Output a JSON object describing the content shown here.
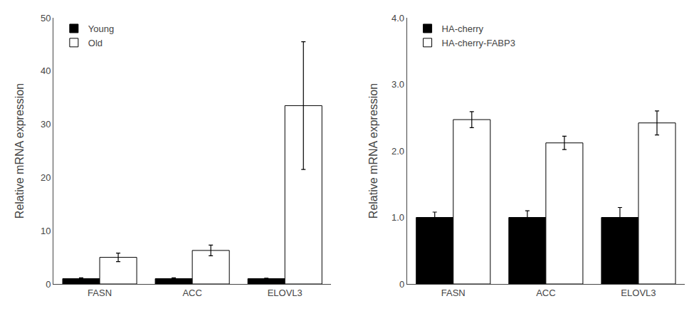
{
  "chart_data": [
    {
      "type": "bar",
      "categories": [
        "FASN",
        "ACC",
        "ELOVL3"
      ],
      "series": [
        {
          "name": "Young",
          "color": "#000000",
          "values": [
            1.0,
            1.0,
            1.0
          ],
          "errors": [
            0.15,
            0.15,
            0.1
          ]
        },
        {
          "name": "Old",
          "color": "#ffffff",
          "values": [
            5.0,
            6.3,
            33.5
          ],
          "errors": [
            0.8,
            1.0,
            12.0
          ]
        }
      ],
      "ylabel": "Relative mRNA expression",
      "ylim": [
        0,
        50
      ],
      "yticks": [
        0,
        10,
        20,
        30,
        40,
        50
      ],
      "legend": "upper left",
      "grid": false
    },
    {
      "type": "bar",
      "categories": [
        "FASN",
        "ACC",
        "ELOVL3"
      ],
      "series": [
        {
          "name": "HA-cherry",
          "color": "#000000",
          "values": [
            1.0,
            1.0,
            1.0
          ],
          "errors": [
            0.08,
            0.1,
            0.15
          ]
        },
        {
          "name": "HA-cherry-FABP3",
          "color": "#ffffff",
          "values": [
            2.47,
            2.12,
            2.42
          ],
          "errors": [
            0.12,
            0.1,
            0.18
          ]
        }
      ],
      "ylabel": "Relative mRNA expression",
      "ylim": [
        0,
        4.0
      ],
      "yticks": [
        0,
        {
          "value": 1.0,
          "label": "1.0"
        },
        {
          "value": 2.0,
          "label": "2.0"
        },
        {
          "value": 3.0,
          "label": "3.0"
        },
        {
          "value": 4.0,
          "label": "4.0"
        }
      ],
      "legend": "upper left",
      "grid": false
    }
  ]
}
